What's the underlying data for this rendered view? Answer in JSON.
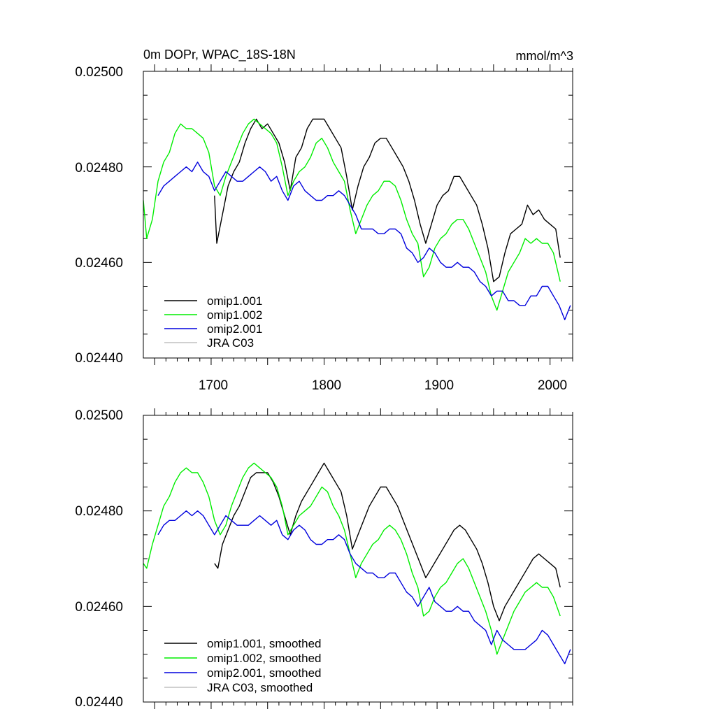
{
  "chart_data": [
    {
      "type": "line",
      "panel": "top",
      "title": "0m DOPr, WPAC_18S-18N",
      "units": "mmol/m^3",
      "xlim": [
        1640,
        2020
      ],
      "ylim": [
        0.0244,
        0.025
      ],
      "x_ticks": [
        1700,
        1800,
        1900,
        2000
      ],
      "x_tick_labels": [
        "1700",
        "1800",
        "1900",
        "2000"
      ],
      "y_ticks": [
        0.0244,
        0.0246,
        0.0248,
        0.025
      ],
      "y_tick_labels": [
        "0.02440",
        "0.02460",
        "0.02480",
        "0.02500"
      ],
      "legend_position": "bottom-left",
      "series": [
        {
          "name": "omip1.001",
          "color": "#000000",
          "x": [
            1703,
            1705,
            1710,
            1715,
            1720,
            1725,
            1730,
            1735,
            1740,
            1745,
            1750,
            1755,
            1760,
            1765,
            1770,
            1775,
            1780,
            1785,
            1790,
            1795,
            1800,
            1805,
            1810,
            1815,
            1820,
            1825,
            1830,
            1835,
            1840,
            1845,
            1850,
            1855,
            1860,
            1865,
            1870,
            1875,
            1880,
            1885,
            1890,
            1895,
            1900,
            1905,
            1910,
            1915,
            1920,
            1925,
            1930,
            1935,
            1940,
            1945,
            1950,
            1955,
            1960,
            1965,
            1970,
            1975,
            1980,
            1985,
            1990,
            1995,
            2000,
            2005,
            2009
          ],
          "values": [
            0.02474,
            0.02464,
            0.0247,
            0.02476,
            0.02479,
            0.02481,
            0.02485,
            0.02488,
            0.0249,
            0.02488,
            0.02489,
            0.02487,
            0.02485,
            0.02481,
            0.02475,
            0.02482,
            0.02484,
            0.02488,
            0.0249,
            0.0249,
            0.0249,
            0.02488,
            0.02486,
            0.02484,
            0.02478,
            0.02471,
            0.02476,
            0.0248,
            0.02482,
            0.02485,
            0.02486,
            0.02486,
            0.02484,
            0.02482,
            0.0248,
            0.02477,
            0.02473,
            0.02468,
            0.02464,
            0.02468,
            0.02472,
            0.02474,
            0.02475,
            0.02478,
            0.02478,
            0.02476,
            0.02474,
            0.02472,
            0.02468,
            0.02463,
            0.02456,
            0.02457,
            0.02462,
            0.02466,
            0.02467,
            0.02468,
            0.02472,
            0.0247,
            0.02471,
            0.02469,
            0.02468,
            0.02467,
            0.02461
          ]
        },
        {
          "name": "omip1.002",
          "color": "#00ee00",
          "x": [
            1640,
            1643,
            1648,
            1653,
            1658,
            1663,
            1668,
            1673,
            1678,
            1683,
            1688,
            1693,
            1698,
            1703,
            1708,
            1713,
            1718,
            1723,
            1728,
            1733,
            1738,
            1743,
            1748,
            1753,
            1758,
            1763,
            1768,
            1773,
            1778,
            1783,
            1788,
            1793,
            1798,
            1803,
            1808,
            1813,
            1818,
            1823,
            1828,
            1833,
            1838,
            1843,
            1848,
            1853,
            1858,
            1863,
            1868,
            1873,
            1878,
            1883,
            1888,
            1893,
            1898,
            1903,
            1908,
            1913,
            1918,
            1923,
            1928,
            1933,
            1938,
            1943,
            1948,
            1953,
            1958,
            1963,
            1968,
            1973,
            1978,
            1983,
            1988,
            1993,
            1998,
            2003,
            2009
          ],
          "values": [
            0.02473,
            0.02465,
            0.02469,
            0.02477,
            0.02481,
            0.02483,
            0.02487,
            0.02489,
            0.02488,
            0.02488,
            0.02487,
            0.02486,
            0.02483,
            0.02476,
            0.02474,
            0.02478,
            0.02481,
            0.02484,
            0.02487,
            0.02489,
            0.0249,
            0.02489,
            0.02488,
            0.02487,
            0.02485,
            0.0248,
            0.02474,
            0.02477,
            0.02479,
            0.0248,
            0.02482,
            0.02485,
            0.02486,
            0.02484,
            0.02481,
            0.02479,
            0.02477,
            0.02471,
            0.02466,
            0.02469,
            0.02472,
            0.02474,
            0.02475,
            0.02477,
            0.02477,
            0.02476,
            0.02473,
            0.02469,
            0.02466,
            0.02464,
            0.02457,
            0.02459,
            0.02463,
            0.02465,
            0.02466,
            0.02468,
            0.02469,
            0.02469,
            0.02467,
            0.02464,
            0.02461,
            0.02458,
            0.02453,
            0.0245,
            0.02454,
            0.02458,
            0.0246,
            0.02462,
            0.02465,
            0.02464,
            0.02465,
            0.02464,
            0.02464,
            0.02462,
            0.02456
          ]
        },
        {
          "name": "omip2.001",
          "color": "#0000dd",
          "x": [
            1653,
            1658,
            1663,
            1668,
            1673,
            1678,
            1683,
            1688,
            1693,
            1698,
            1703,
            1708,
            1713,
            1718,
            1723,
            1728,
            1733,
            1738,
            1743,
            1748,
            1753,
            1758,
            1763,
            1768,
            1773,
            1778,
            1783,
            1788,
            1793,
            1798,
            1803,
            1808,
            1813,
            1818,
            1823,
            1828,
            1833,
            1838,
            1843,
            1848,
            1853,
            1858,
            1863,
            1868,
            1873,
            1878,
            1883,
            1888,
            1893,
            1898,
            1903,
            1908,
            1913,
            1918,
            1923,
            1928,
            1933,
            1938,
            1943,
            1948,
            1953,
            1958,
            1963,
            1968,
            1973,
            1978,
            1983,
            1988,
            1993,
            1998,
            2003,
            2008,
            2013,
            2018
          ],
          "values": [
            0.02474,
            0.02476,
            0.02477,
            0.02478,
            0.02479,
            0.0248,
            0.02479,
            0.02481,
            0.02479,
            0.02478,
            0.02475,
            0.02477,
            0.02479,
            0.02478,
            0.02477,
            0.02477,
            0.02478,
            0.02479,
            0.0248,
            0.02479,
            0.02477,
            0.02478,
            0.02475,
            0.02473,
            0.02476,
            0.02477,
            0.02475,
            0.02474,
            0.02473,
            0.02473,
            0.02474,
            0.02474,
            0.02475,
            0.02474,
            0.02472,
            0.0247,
            0.02467,
            0.02467,
            0.02467,
            0.02466,
            0.02466,
            0.02467,
            0.02467,
            0.02466,
            0.02463,
            0.02462,
            0.0246,
            0.02461,
            0.02463,
            0.02462,
            0.0246,
            0.02459,
            0.02459,
            0.0246,
            0.02459,
            0.02459,
            0.02458,
            0.02456,
            0.02455,
            0.02453,
            0.02454,
            0.02454,
            0.02452,
            0.02452,
            0.02451,
            0.02451,
            0.02453,
            0.02453,
            0.02455,
            0.02455,
            0.02453,
            0.02451,
            0.02448,
            0.02451
          ]
        },
        {
          "name": "JRA C03",
          "color": "#c0c0c0",
          "x": [],
          "values": []
        }
      ]
    },
    {
      "type": "line",
      "panel": "bottom",
      "title": "",
      "xlim": [
        1640,
        2020
      ],
      "ylim": [
        0.0244,
        0.025
      ],
      "y_ticks": [
        0.0244,
        0.0246,
        0.0248,
        0.025
      ],
      "y_tick_labels": [
        "0.02440",
        "0.02460",
        "0.02480",
        "0.02500"
      ],
      "legend_position": "bottom-left",
      "series": [
        {
          "name": "omip1.001, smoothed",
          "color": "#000000",
          "x": [
            1703,
            1706,
            1710,
            1715,
            1720,
            1725,
            1730,
            1735,
            1740,
            1745,
            1750,
            1755,
            1760,
            1765,
            1770,
            1775,
            1780,
            1785,
            1790,
            1795,
            1800,
            1805,
            1810,
            1815,
            1820,
            1825,
            1830,
            1835,
            1840,
            1845,
            1850,
            1855,
            1860,
            1865,
            1870,
            1875,
            1880,
            1885,
            1890,
            1895,
            1900,
            1905,
            1910,
            1915,
            1920,
            1925,
            1930,
            1935,
            1940,
            1945,
            1950,
            1955,
            1960,
            1965,
            1970,
            1975,
            1980,
            1985,
            1990,
            1995,
            2000,
            2005,
            2009
          ],
          "values": [
            0.02469,
            0.02468,
            0.02473,
            0.02476,
            0.02479,
            0.02481,
            0.02484,
            0.02487,
            0.02488,
            0.02488,
            0.02488,
            0.02486,
            0.02483,
            0.02479,
            0.02475,
            0.02479,
            0.02482,
            0.02484,
            0.02486,
            0.02488,
            0.0249,
            0.02488,
            0.02486,
            0.02484,
            0.02479,
            0.02472,
            0.02475,
            0.02478,
            0.02481,
            0.02483,
            0.02485,
            0.02485,
            0.02483,
            0.02481,
            0.02478,
            0.02475,
            0.02472,
            0.02469,
            0.02466,
            0.02468,
            0.0247,
            0.02472,
            0.02474,
            0.02476,
            0.02477,
            0.02476,
            0.02474,
            0.02472,
            0.02469,
            0.02465,
            0.0246,
            0.02457,
            0.0246,
            0.02462,
            0.02464,
            0.02466,
            0.02468,
            0.0247,
            0.02471,
            0.0247,
            0.02469,
            0.02468,
            0.02464
          ]
        },
        {
          "name": "omip1.002, smoothed",
          "color": "#00ee00",
          "x": [
            1640,
            1643,
            1648,
            1653,
            1658,
            1663,
            1668,
            1673,
            1678,
            1683,
            1688,
            1693,
            1698,
            1703,
            1708,
            1713,
            1718,
            1723,
            1728,
            1733,
            1738,
            1743,
            1748,
            1753,
            1758,
            1763,
            1768,
            1773,
            1778,
            1783,
            1788,
            1793,
            1798,
            1803,
            1808,
            1813,
            1818,
            1823,
            1828,
            1833,
            1838,
            1843,
            1848,
            1853,
            1858,
            1863,
            1868,
            1873,
            1878,
            1883,
            1888,
            1893,
            1898,
            1903,
            1908,
            1913,
            1918,
            1923,
            1928,
            1933,
            1938,
            1943,
            1948,
            1953,
            1958,
            1963,
            1968,
            1973,
            1978,
            1983,
            1988,
            1993,
            1998,
            2003,
            2009
          ],
          "values": [
            0.02469,
            0.02468,
            0.02473,
            0.02477,
            0.02481,
            0.02483,
            0.02486,
            0.02488,
            0.02489,
            0.02488,
            0.02488,
            0.02486,
            0.02483,
            0.02478,
            0.02475,
            0.02477,
            0.02481,
            0.02484,
            0.02487,
            0.02489,
            0.0249,
            0.02489,
            0.02488,
            0.02487,
            0.02485,
            0.02481,
            0.02475,
            0.02477,
            0.02479,
            0.0248,
            0.02481,
            0.02483,
            0.02485,
            0.02484,
            0.02481,
            0.02479,
            0.02476,
            0.02471,
            0.02466,
            0.02469,
            0.02471,
            0.02473,
            0.02474,
            0.02476,
            0.02477,
            0.02476,
            0.02474,
            0.02471,
            0.02467,
            0.02464,
            0.02458,
            0.02459,
            0.02462,
            0.02464,
            0.02465,
            0.02467,
            0.02469,
            0.0247,
            0.02468,
            0.02465,
            0.02462,
            0.02459,
            0.02455,
            0.0245,
            0.02453,
            0.02456,
            0.02459,
            0.02461,
            0.02463,
            0.02464,
            0.02465,
            0.02464,
            0.02464,
            0.02462,
            0.02458
          ]
        },
        {
          "name": "omip2.001, smoothed",
          "color": "#0000dd",
          "x": [
            1653,
            1658,
            1663,
            1668,
            1673,
            1678,
            1683,
            1688,
            1693,
            1698,
            1703,
            1708,
            1713,
            1718,
            1723,
            1728,
            1733,
            1738,
            1743,
            1748,
            1753,
            1758,
            1763,
            1768,
            1773,
            1778,
            1783,
            1788,
            1793,
            1798,
            1803,
            1808,
            1813,
            1818,
            1823,
            1828,
            1833,
            1838,
            1843,
            1848,
            1853,
            1858,
            1863,
            1868,
            1873,
            1878,
            1883,
            1888,
            1893,
            1898,
            1903,
            1908,
            1913,
            1918,
            1923,
            1928,
            1933,
            1938,
            1943,
            1948,
            1953,
            1958,
            1963,
            1968,
            1973,
            1978,
            1983,
            1988,
            1993,
            1998,
            2003,
            2008,
            2013,
            2018
          ],
          "values": [
            0.02475,
            0.02477,
            0.02478,
            0.02478,
            0.02479,
            0.0248,
            0.02479,
            0.0248,
            0.02479,
            0.02477,
            0.02475,
            0.02477,
            0.02479,
            0.02478,
            0.02477,
            0.02477,
            0.02477,
            0.02478,
            0.02479,
            0.02478,
            0.02477,
            0.02478,
            0.02475,
            0.02474,
            0.02476,
            0.02477,
            0.02476,
            0.02474,
            0.02473,
            0.02473,
            0.02474,
            0.02474,
            0.02475,
            0.02474,
            0.02471,
            0.02469,
            0.02468,
            0.02467,
            0.02467,
            0.02466,
            0.02466,
            0.02467,
            0.02467,
            0.02465,
            0.02463,
            0.02462,
            0.0246,
            0.02462,
            0.02464,
            0.02461,
            0.0246,
            0.02459,
            0.02459,
            0.0246,
            0.02459,
            0.02459,
            0.02457,
            0.02456,
            0.02455,
            0.02452,
            0.02455,
            0.02453,
            0.02452,
            0.02451,
            0.02451,
            0.02451,
            0.02452,
            0.02453,
            0.02455,
            0.02454,
            0.02452,
            0.0245,
            0.02448,
            0.02451
          ]
        },
        {
          "name": "JRA C03, smoothed",
          "color": "#c0c0c0",
          "x": [],
          "values": []
        }
      ]
    }
  ]
}
